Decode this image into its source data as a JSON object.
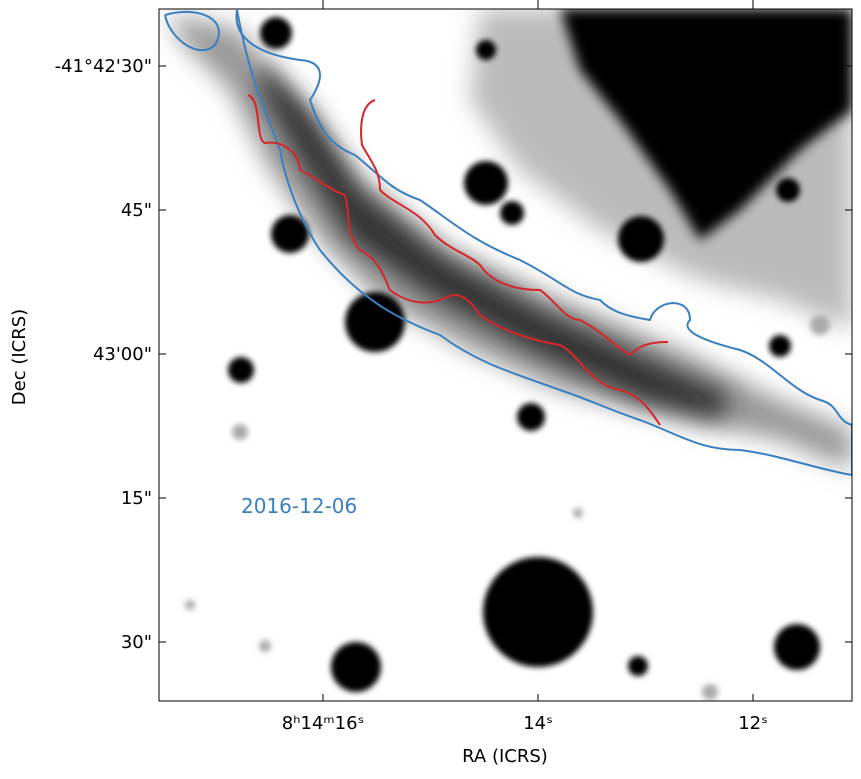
{
  "plot": {
    "xlabel": "RA (ICRS)",
    "ylabel": "Dec (ICRS)",
    "xticks": [
      "8ʰ14ᵐ16ˢ",
      "14ˢ",
      "12ˢ"
    ],
    "yticks": [
      "-41°42'30\"",
      "45\"",
      "43'00\"",
      "15\"",
      "30\""
    ],
    "annotation": "2016-12-06"
  }
}
